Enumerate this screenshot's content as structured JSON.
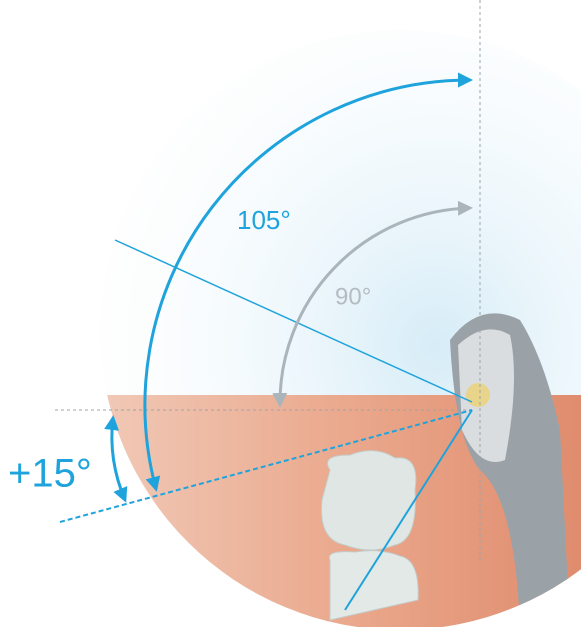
{
  "labels": {
    "angle_large": "105°",
    "angle_right": "90°",
    "angle_tilt": "+15°"
  }
}
